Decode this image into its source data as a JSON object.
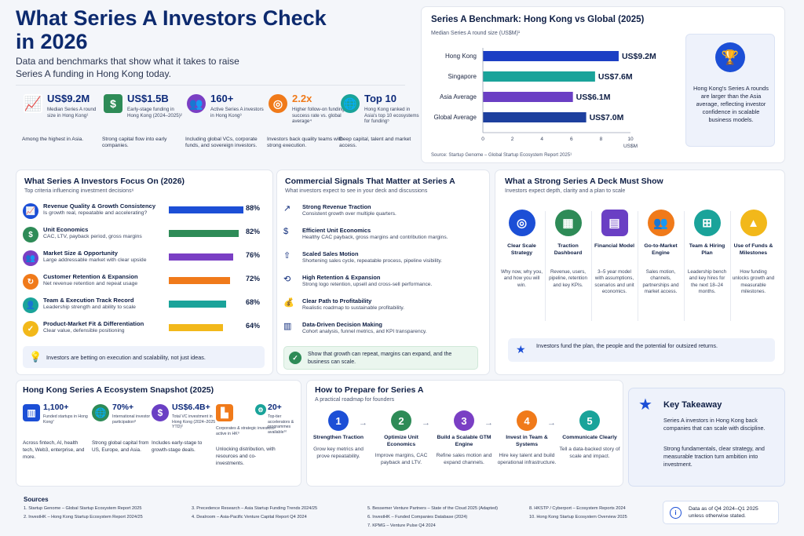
{
  "header": {
    "title": "What Series A Investors Check in 2026",
    "subtitle": "Data and benchmarks that show what it takes to raise Series A funding in Hong Kong today."
  },
  "stats": [
    {
      "icon": "chart-growth-icon",
      "value": "US$9.2M",
      "label": "Median Series A round size in Hong Kong¹",
      "foot": "Among the highest in Asia."
    },
    {
      "icon": "coin-stack-icon",
      "value": "US$1.5B",
      "label": "Early-stage funding in Hong Kong (2024–2025)²",
      "foot": "Strong capital flow into early companies."
    },
    {
      "icon": "investors-group-icon",
      "value": "160+",
      "label": "Active Series A investors in Hong Kong³",
      "foot": "Including global VCs, corporate funds, and sovereign investors."
    },
    {
      "icon": "target-icon",
      "value": "2.2x",
      "label": "Higher follow-on funding success rate vs. global average⁴",
      "foot": "Investors back quality teams with strong execution."
    },
    {
      "icon": "globe-icon",
      "value": "Top 10",
      "label": "Hong Kong ranked in Asia's top 10 ecosystems for funding⁵",
      "foot": "Deep capital, talent and market access."
    }
  ],
  "benchmark": {
    "title": "Series A Benchmark: Hong Kong vs Global (2025)",
    "subtitle": "Median Series A round size (US$M)¹",
    "source": "Source: Startup Genome – Global Startup Ecosystem Report 2025¹",
    "axis_unit": "US$M",
    "insight": "Hong Kong's Series A rounds are larger than the Asia average, reflecting investor confidence in scalable business models.",
    "value_labels": [
      "US$9.2M",
      "US$7.6M",
      "US$6.1M",
      "US$7.0M"
    ],
    "colors": [
      "#1c3fc4",
      "#1aa39a",
      "#6a3fc4",
      "#1d3f9e"
    ]
  },
  "chart_data": {
    "type": "bar",
    "orientation": "horizontal",
    "title": "Series A Benchmark: Hong Kong vs Global (2025)",
    "categories": [
      "Hong Kong",
      "Singapore",
      "Asia Average",
      "Global Average"
    ],
    "values": [
      9.2,
      7.6,
      6.1,
      7.0
    ],
    "xlabel": "US$M",
    "xlim": [
      0,
      10
    ],
    "ticks": [
      "0",
      "2",
      "4",
      "6",
      "8",
      "10"
    ]
  },
  "focus": {
    "title": "What Series A Investors Focus On (2026)",
    "subtitle": "Top criteria influencing investment decisions⁶",
    "items": [
      {
        "icon": "growth-chart-icon",
        "title": "Revenue Quality & Growth Consistency",
        "desc": "Is growth real, repeatable and accelerating?",
        "percent": 88,
        "label": "88%",
        "color": "#1c4fd6"
      },
      {
        "icon": "dollar-icon",
        "title": "Unit Economics",
        "desc": "CAC, LTV, payback period, gross margins",
        "percent": 82,
        "label": "82%",
        "color": "#2e8b57"
      },
      {
        "icon": "people-icon",
        "title": "Market Size & Opportunity",
        "desc": "Large addressable market with clear upside",
        "percent": 76,
        "label": "76%",
        "color": "#7a3fc4"
      },
      {
        "icon": "refresh-icon",
        "title": "Customer Retention & Expansion",
        "desc": "Net revenue retention and repeat usage",
        "percent": 72,
        "label": "72%",
        "color": "#f07a1a"
      },
      {
        "icon": "team-icon",
        "title": "Team & Execution Track Record",
        "desc": "Leadership strength and ability to scale",
        "percent": 68,
        "label": "68%",
        "color": "#1aa39a"
      },
      {
        "icon": "shield-icon",
        "title": "Product-Market Fit & Differentiation",
        "desc": "Clear value, defensible positioning",
        "percent": 64,
        "label": "64%",
        "color": "#f2b81a"
      }
    ],
    "note": "Investors are betting on execution and scalability, not just ideas."
  },
  "signals": {
    "title": "Commercial Signals That Matter at Series A",
    "subtitle": "What investors expect to see in your deck and discussions",
    "items": [
      {
        "icon": "trend-up-icon",
        "title": "Strong Revenue Traction",
        "desc": "Consistent growth over multiple quarters."
      },
      {
        "icon": "dollar-circle-icon",
        "title": "Efficient Unit Economics",
        "desc": "Healthy CAC payback, gross margins and contribution margins."
      },
      {
        "icon": "scale-icon",
        "title": "Scaled Sales Motion",
        "desc": "Shortening sales cycle, repeatable process, pipeline visibility."
      },
      {
        "icon": "retention-icon",
        "title": "High Retention & Expansion",
        "desc": "Strong logo retention, upsell and cross-sell performance."
      },
      {
        "icon": "dollar-bag-icon",
        "title": "Clear Path to Profitability",
        "desc": "Realistic roadmap to sustainable profitability."
      },
      {
        "icon": "bar-chart-icon",
        "title": "Data-Driven Decision Making",
        "desc": "Cohort analysis, funnel metrics, and KPI transparency."
      }
    ],
    "note": "Show that growth can repeat, margins can expand, and the business can scale."
  },
  "deck": {
    "title": "What a Strong Series A Deck Must Show",
    "subtitle": "Investors expect depth, clarity and a plan to scale",
    "items": [
      {
        "icon": "target-icon",
        "title": "Clear Scale Strategy",
        "desc": "Why now, why you, and how you will win.",
        "color": "#1c4fd6"
      },
      {
        "icon": "dashboard-icon",
        "title": "Traction Dashboard",
        "desc": "Revenue, users, pipeline, retention and key KPIs.",
        "color": "#2e8b57"
      },
      {
        "icon": "calculator-icon",
        "title": "Financial Model",
        "desc": "3–5 year model with assumptions, scenarios and unit economics.",
        "color": "#6a3fc4"
      },
      {
        "icon": "people-icon",
        "title": "Go-to-Market Engine",
        "desc": "Sales motion, channels, partnerships and market access.",
        "color": "#f07a1a"
      },
      {
        "icon": "org-chart-icon",
        "title": "Team & Hiring Plan",
        "desc": "Leadership bench and key hires for the next 18–24 months.",
        "color": "#1aa39a"
      },
      {
        "icon": "funds-chart-icon",
        "title": "Use of Funds & Milestones",
        "desc": "How funding unlocks growth and measurable milestones.",
        "color": "#f2b81a"
      }
    ],
    "note": "Investors fund the plan, the people and the potential for outsized returns."
  },
  "ecosystem": {
    "title": "Hong Kong Series A Ecosystem Snapshot (2025)",
    "items": [
      {
        "icon": "buildings-icon",
        "value": "1,100+",
        "label": "Funded startups in Hong Kong⁷",
        "desc": "Across fintech, AI, health tech, Web3, enterprise, and more.",
        "color": "#1c4fd6"
      },
      {
        "icon": "globe-icon",
        "value": "70%+",
        "label": "International investor participation⁸",
        "desc": "Strong global capital from US, Europe, and Asia.",
        "color": "#2e8b57"
      },
      {
        "icon": "dollar-icon",
        "value": "US$6.4B+",
        "label": "Total VC investment in Hong Kong (2024–2025 YTD)²",
        "desc": "Includes early-stage to growth-stage deals.",
        "color": "#6a3fc4"
      },
      {
        "icon": "factory-icon",
        "value": "",
        "label": "Corporates & strategic investors active in HK⁹",
        "desc": "Unlocking distribution, with resources and co-investments.",
        "color": "#f07a1a"
      },
      {
        "icon": "accelerator-icon",
        "value": "20+",
        "label": "Top-tier accelerators & programmes available¹⁰",
        "desc": "",
        "color": "#1aa39a"
      }
    ]
  },
  "prepare": {
    "title": "How to Prepare for Series A",
    "subtitle": "A practical roadmap for founders",
    "steps": [
      {
        "num": "1",
        "title": "Strengthen Traction",
        "desc": "Grow key metrics and prove repeatability.",
        "color": "#1c4fd6"
      },
      {
        "num": "2",
        "title": "Optimize Unit Economics",
        "desc": "Improve margins, CAC payback and LTV.",
        "color": "#2e8b57"
      },
      {
        "num": "3",
        "title": "Build a Scalable GTM Engine",
        "desc": "Refine sales motion and expand channels.",
        "color": "#7a3fc4"
      },
      {
        "num": "4",
        "title": "Invest in Team & Systems",
        "desc": "Hire key talent and build operational infrastructure.",
        "color": "#f07a1a"
      },
      {
        "num": "5",
        "title": "Communicate Clearly",
        "desc": "Tell a data-backed story of scale and impact.",
        "color": "#1aa39a"
      }
    ]
  },
  "takeaway": {
    "title": "Key Takeaway",
    "p1": "Series A investors in Hong Kong back companies that can scale with discipline.",
    "p2": "Strong fundamentals, clear strategy, and measurable traction turn ambition into investment."
  },
  "sources": {
    "title": "Sources",
    "items": [
      "1.  Startup Genome – Global Startup Ecosystem Report 2025",
      "2.  InvestHK – Hong Kong Startup Ecosystem Report 2024/25",
      "3.  Precedence Research – Asia Startup Funding Trends 2024/25",
      "4.  Dealroom – Asia-Pacific Venture Capital Report Q4 2024",
      "5.  Bessemer Venture Partners – State of the Cloud 2025 (Adapted)",
      "6.  InvestHK – Funded Companies Database (2024)",
      "7.  KPMG – Venture Pulse Q4 2024",
      "8.  HKSTP / Cyberport – Ecosystem Reports 2024",
      "10.  Hong Kong Startup Ecosystem Overview 2025"
    ],
    "note": "Data as of Q4 2024–Q1 2025 unless otherwise stated."
  }
}
